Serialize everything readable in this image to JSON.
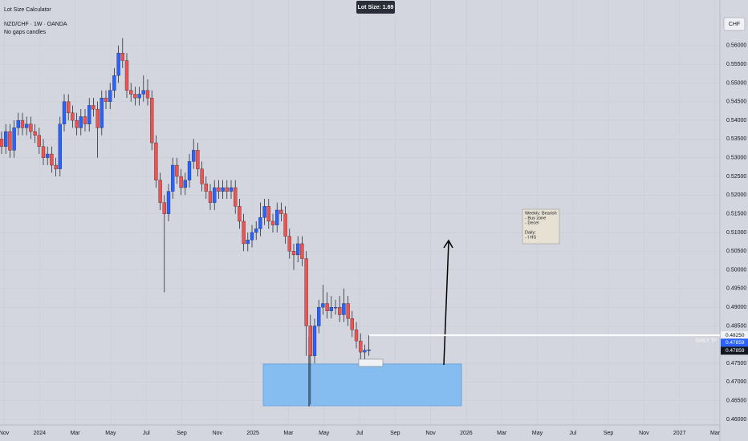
{
  "header": {
    "app": "Lot Size Calculator",
    "symbol": "NZD/CHF · 1W · OANDA",
    "note": "No gaps candles",
    "lot_size": "Lot Size: 1.69"
  },
  "chart_data": {
    "type": "candlestick",
    "open": [
      0.535,
      0.533,
      0.537,
      0.532,
      0.538,
      0.54,
      0.538,
      0.539,
      0.537,
      0.536,
      0.533,
      0.53,
      0.531,
      0.528,
      0.527,
      0.539,
      0.545,
      0.542,
      0.54,
      0.538,
      0.541,
      0.539,
      0.544,
      0.543,
      0.538,
      0.546,
      0.545,
      0.548,
      0.552,
      0.558,
      0.556,
      0.548,
      0.547,
      0.546,
      0.547,
      0.548,
      0.546,
      0.534,
      0.524,
      0.518,
      0.515,
      0.521,
      0.528,
      0.525,
      0.522,
      0.524,
      0.529,
      0.532,
      0.527,
      0.523,
      0.521,
      0.518,
      0.522,
      0.521,
      0.522,
      0.521,
      0.522,
      0.517,
      0.513,
      0.507,
      0.508,
      0.51,
      0.511,
      0.514,
      0.517,
      0.513,
      0.512,
      0.516,
      0.515,
      0.509,
      0.505,
      0.504,
      0.507,
      0.503,
      0.485,
      0.477,
      0.485,
      0.49,
      0.491,
      0.489,
      0.49,
      0.49,
      0.488,
      0.491,
      0.487,
      0.484,
      0.481,
      0.478,
      0.4785
    ],
    "high": [
      0.537,
      0.539,
      0.539,
      0.54,
      0.542,
      0.542,
      0.541,
      0.541,
      0.539,
      0.538,
      0.535,
      0.533,
      0.533,
      0.53,
      0.541,
      0.547,
      0.547,
      0.544,
      0.542,
      0.543,
      0.543,
      0.546,
      0.546,
      0.545,
      0.548,
      0.548,
      0.55,
      0.554,
      0.56,
      0.562,
      0.558,
      0.55,
      0.549,
      0.549,
      0.552,
      0.551,
      0.548,
      0.536,
      0.526,
      0.52,
      0.523,
      0.53,
      0.53,
      0.527,
      0.526,
      0.531,
      0.535,
      0.534,
      0.529,
      0.525,
      0.523,
      0.524,
      0.524,
      0.524,
      0.524,
      0.524,
      0.524,
      0.519,
      0.515,
      0.51,
      0.512,
      0.513,
      0.518,
      0.519,
      0.519,
      0.515,
      0.518,
      0.518,
      0.517,
      0.511,
      0.507,
      0.509,
      0.509,
      0.505,
      0.488,
      0.487,
      0.492,
      0.496,
      0.494,
      0.493,
      0.492,
      0.493,
      0.495,
      0.493,
      0.489,
      0.486,
      0.483,
      0.48,
      0.4825
    ],
    "low": [
      0.531,
      0.531,
      0.53,
      0.53,
      0.536,
      0.536,
      0.536,
      0.535,
      0.534,
      0.531,
      0.528,
      0.528,
      0.526,
      0.525,
      0.525,
      0.537,
      0.54,
      0.538,
      0.536,
      0.536,
      0.537,
      0.537,
      0.541,
      0.53,
      0.536,
      0.543,
      0.543,
      0.546,
      0.55,
      0.554,
      0.546,
      0.545,
      0.544,
      0.544,
      0.545,
      0.544,
      0.532,
      0.522,
      0.516,
      0.494,
      0.513,
      0.519,
      0.523,
      0.52,
      0.52,
      0.522,
      0.527,
      0.525,
      0.521,
      0.519,
      0.516,
      0.516,
      0.519,
      0.519,
      0.519,
      0.519,
      0.515,
      0.511,
      0.505,
      0.505,
      0.506,
      0.508,
      0.509,
      0.512,
      0.511,
      0.51,
      0.51,
      0.513,
      0.507,
      0.503,
      0.5,
      0.502,
      0.501,
      0.477,
      0.464,
      0.475,
      0.483,
      0.488,
      0.487,
      0.487,
      0.488,
      0.486,
      0.486,
      0.485,
      0.482,
      0.479,
      0.476,
      0.476,
      0.477
    ],
    "close": [
      0.533,
      0.537,
      0.532,
      0.538,
      0.54,
      0.538,
      0.539,
      0.537,
      0.536,
      0.533,
      0.53,
      0.531,
      0.528,
      0.527,
      0.539,
      0.545,
      0.542,
      0.54,
      0.538,
      0.541,
      0.539,
      0.544,
      0.543,
      0.538,
      0.546,
      0.545,
      0.548,
      0.552,
      0.558,
      0.556,
      0.548,
      0.547,
      0.546,
      0.547,
      0.548,
      0.546,
      0.534,
      0.524,
      0.518,
      0.515,
      0.521,
      0.528,
      0.525,
      0.522,
      0.524,
      0.529,
      0.532,
      0.527,
      0.523,
      0.521,
      0.518,
      0.522,
      0.521,
      0.522,
      0.521,
      0.522,
      0.517,
      0.513,
      0.507,
      0.508,
      0.51,
      0.511,
      0.514,
      0.517,
      0.513,
      0.512,
      0.516,
      0.515,
      0.509,
      0.505,
      0.504,
      0.507,
      0.503,
      0.485,
      0.477,
      0.485,
      0.49,
      0.491,
      0.489,
      0.49,
      0.49,
      0.488,
      0.491,
      0.487,
      0.484,
      0.481,
      0.478,
      0.4785,
      0.4786
    ],
    "up_color": "#2962ff",
    "down_color": "#ef5350",
    "ylim": [
      0.4585,
      0.5722
    ],
    "yticks": [
      {
        "value": 0.56,
        "label": "0.56000"
      },
      {
        "value": 0.555,
        "label": "0.55500"
      },
      {
        "value": 0.55,
        "label": "0.55000"
      },
      {
        "value": 0.545,
        "label": "0.54500"
      },
      {
        "value": 0.54,
        "label": "0.54000"
      },
      {
        "value": 0.535,
        "label": "0.53500"
      },
      {
        "value": 0.53,
        "label": "0.53000"
      },
      {
        "value": 0.525,
        "label": "0.52500"
      },
      {
        "value": 0.52,
        "label": "0.52000"
      },
      {
        "value": 0.515,
        "label": "0.51500"
      },
      {
        "value": 0.51,
        "label": "0.51000"
      },
      {
        "value": 0.505,
        "label": "0.50500"
      },
      {
        "value": 0.5,
        "label": "0.50000"
      },
      {
        "value": 0.495,
        "label": "0.49500"
      },
      {
        "value": 0.49,
        "label": "0.49000"
      },
      {
        "value": 0.485,
        "label": "0.48500"
      },
      {
        "value": 0.475,
        "label": "0.47500"
      },
      {
        "value": 0.47,
        "label": "0.47000"
      },
      {
        "value": 0.465,
        "label": "0.46500"
      },
      {
        "value": 0.46,
        "label": "0.46000"
      }
    ],
    "x_labels": [
      "Nov",
      "2024",
      "Mar",
      "May",
      "Jul",
      "Sep",
      "Nov",
      "2025",
      "Mar",
      "May",
      "Jul",
      "Sep",
      "Nov",
      "2026",
      "Mar",
      "May",
      "Jul",
      "Sep",
      "Nov",
      "2027",
      "Mar"
    ],
    "currency": "CHF",
    "tp_label": "DAILY TP",
    "tp_price": {
      "value": 0.4825,
      "label": "0.48250"
    },
    "price_labels": [
      {
        "value": 0.47859,
        "label": "0.47859"
      },
      {
        "value": 0.47859,
        "label": "0.47859"
      }
    ],
    "note_lines": [
      "Weekly: Bearish",
      "- Buy zone",
      "- Decel",
      "Daily:",
      "- I HS"
    ]
  }
}
